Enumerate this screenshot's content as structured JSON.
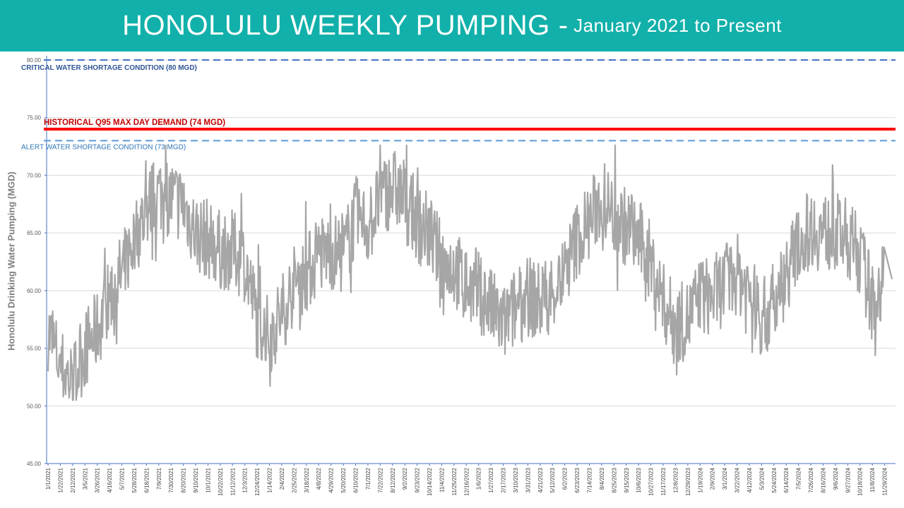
{
  "header": {
    "title_main": "HONOLULU WEEKLY PUMPING",
    "separator": "-",
    "title_sub": "January 2021 to Present"
  },
  "colors": {
    "banner": "#12b0aa",
    "series": "#a6a6a6",
    "critical_line": "#4472c4",
    "alert_line": "#5b9bd5",
    "historical_line": "#ff0000",
    "grid": "#d9d9d9",
    "axis": "#4472c4"
  },
  "chart_data": {
    "type": "line",
    "title": "HONOLULU WEEKLY PUMPING - January 2021 to Present",
    "ylabel": "Honolulu Drinking Water Pumping (MGD)",
    "xlabel": "",
    "ylim": [
      45,
      80
    ],
    "y_ticks": [
      "45.00",
      "50.00",
      "55.00",
      "60.00",
      "65.00",
      "70.00",
      "75.00",
      "80.00"
    ],
    "grid": true,
    "x_tick_labels": [
      "1/1/2021",
      "1/22/2021",
      "2/12/2021",
      "3/5/2021",
      "3/26/2021",
      "4/16/2021",
      "5/7/2021",
      "5/28/2021",
      "6/18/2021",
      "7/9/2021",
      "7/30/2021",
      "8/20/2021",
      "9/10/2021",
      "10/1/2021",
      "10/22/2021",
      "11/12/2021",
      "12/3/2021",
      "12/24/2021",
      "1/14/2022",
      "2/4/2022",
      "2/25/2022",
      "3/18/2022",
      "4/8/2022",
      "4/29/2022",
      "5/20/2022",
      "6/10/2022",
      "7/1/2022",
      "7/22/2022",
      "8/12/2022",
      "9/2/2022",
      "9/23/2022",
      "10/14/2022",
      "11/4/2022",
      "11/25/2022",
      "12/16/2022",
      "1/6/2023",
      "1/27/2023",
      "2/17/2023",
      "3/10/2023",
      "3/31/2023",
      "4/21/2023",
      "5/12/2023",
      "6/2/2023",
      "6/23/2023",
      "7/14/2023",
      "8/4/2023",
      "8/25/2023",
      "9/15/2023",
      "10/6/2023",
      "10/27/2023",
      "11/17/2023",
      "12/8/2023",
      "12/29/2023",
      "1/19/2024",
      "2/9/2024",
      "3/1/2024",
      "3/22/2024",
      "4/12/2024",
      "5/3/2024",
      "5/24/2024",
      "6/14/2024",
      "7/5/2024",
      "7/26/2024",
      "8/16/2024",
      "9/6/2024",
      "9/27/2024",
      "10/18/2024",
      "11/8/2024",
      "11/29/2024"
    ],
    "reference_lines": [
      {
        "label": "CRITICAL WATER SHORTAGE CONDITION (80 MGD)",
        "value": 80,
        "style": "dashed",
        "color": "#4472c4"
      },
      {
        "label": "HISTORICAL Q95 MAX DAY DEMAND (74 MGD)",
        "value": 74,
        "style": "solid",
        "color": "#ff0000"
      },
      {
        "label": "ALERT WATER SHORTAGE CONDITION (73 MGD)",
        "value": 73,
        "style": "dashed",
        "color": "#5b9bd5"
      }
    ],
    "x": [
      "1/1/2021",
      "1/22/2021",
      "2/12/2021",
      "3/5/2021",
      "3/26/2021",
      "4/16/2021",
      "5/7/2021",
      "5/28/2021",
      "6/18/2021",
      "7/9/2021",
      "7/30/2021",
      "8/20/2021",
      "9/10/2021",
      "10/1/2021",
      "10/22/2021",
      "11/12/2021",
      "12/3/2021",
      "12/24/2021",
      "1/14/2022",
      "2/4/2022",
      "2/25/2022",
      "3/18/2022",
      "4/8/2022",
      "4/29/2022",
      "5/20/2022",
      "6/10/2022",
      "7/1/2022",
      "7/22/2022",
      "8/12/2022",
      "9/2/2022",
      "9/23/2022",
      "10/14/2022",
      "11/4/2022",
      "11/25/2022",
      "12/16/2022",
      "1/6/2023",
      "1/27/2023",
      "2/17/2023",
      "3/10/2023",
      "3/31/2023",
      "4/21/2023",
      "5/12/2023",
      "6/2/2023",
      "6/23/2023",
      "7/14/2023",
      "8/4/2023",
      "8/25/2023",
      "9/15/2023",
      "10/6/2023",
      "10/27/2023",
      "11/17/2023",
      "12/8/2023",
      "12/29/2023",
      "1/19/2024",
      "2/9/2024",
      "3/1/2024",
      "3/22/2024",
      "4/12/2024",
      "5/3/2024",
      "5/24/2024",
      "6/14/2024",
      "7/5/2024",
      "7/26/2024",
      "8/16/2024",
      "9/6/2024",
      "9/27/2024",
      "10/18/2024",
      "11/8/2024",
      "11/29/2024"
    ],
    "series": [
      {
        "values": [
          56.5,
          53.5,
          52.0,
          55.0,
          56.5,
          59.5,
          61.5,
          64.5,
          67.0,
          68.5,
          68.0,
          67.5,
          65.0,
          64.5,
          63.5,
          63.5,
          62.5,
          57.5,
          56.0,
          58.0,
          60.5,
          61.5,
          63.0,
          63.5,
          63.0,
          66.5,
          65.5,
          68.0,
          69.0,
          68.0,
          66.0,
          65.0,
          62.5,
          62.0,
          60.5,
          60.0,
          58.5,
          57.0,
          58.5,
          59.5,
          59.0,
          60.0,
          61.5,
          64.5,
          66.0,
          68.0,
          66.5,
          65.5,
          64.5,
          62.5,
          59.0,
          57.0,
          57.5,
          59.5,
          59.5,
          60.5,
          61.5,
          60.0,
          57.5,
          58.5,
          61.5,
          64.0,
          65.5,
          65.0,
          65.0,
          64.5,
          63.0,
          59.0,
          61.0
        ]
      }
    ]
  }
}
